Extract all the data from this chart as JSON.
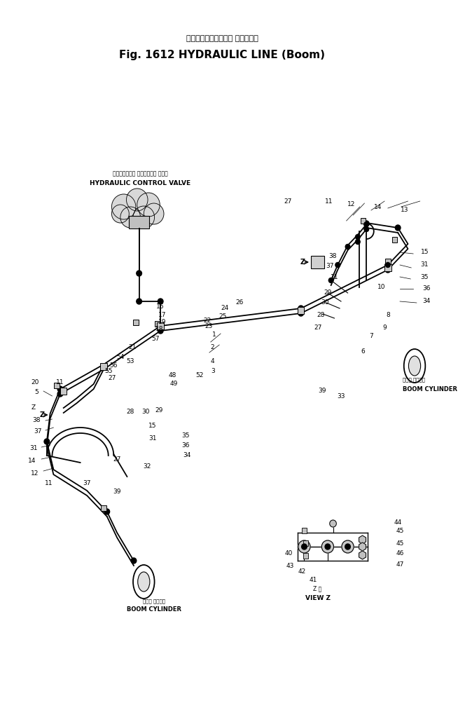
{
  "title_jp": "ハイドロリックライン （ブーム）",
  "title_en": "Fig. 1612 HYDRAULIC LINE",
  "title_boom": "(Boom)",
  "bg_color": "#ffffff",
  "fig_width": 6.64,
  "fig_height": 10.23,
  "dpi": 100,
  "valve_label_jp": "ハイドロリック コントロール バルブ",
  "valve_label_en": "HYDRAULIC CONTROL VALVE",
  "boom_cyl_jp_r": "ブーム シリンダ",
  "boom_cyl_en_r": "BOOM CYLINDER",
  "boom_cyl_jp_l": "ブーム シリンダ",
  "boom_cyl_en_l": "BOOM CYLINDER",
  "view_z_jp": "Z 視",
  "view_z_en": "VIEW Z"
}
